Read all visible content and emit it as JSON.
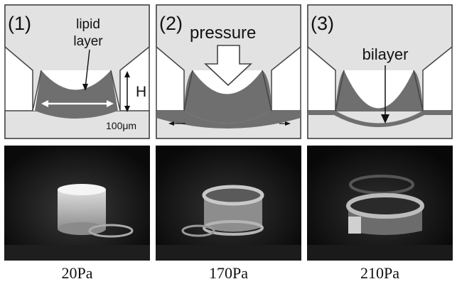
{
  "panels": [
    {
      "number": "(1)",
      "labels": {
        "lipid_layer_line1": "lipid",
        "lipid_layer_line2": "layer",
        "height": "H",
        "scale": "100μm"
      }
    },
    {
      "number": "(2)",
      "labels": {
        "pressure": "pressure"
      }
    },
    {
      "number": "(3)",
      "labels": {
        "bilayer": "bilayer"
      }
    }
  ],
  "pressures": [
    "20Pa",
    "170Pa",
    "210Pa"
  ],
  "colors": {
    "outline": "#444444",
    "fill_light": "#e2e2e2",
    "lipid": "#6f6f6f",
    "photo_dark": "#111111"
  }
}
